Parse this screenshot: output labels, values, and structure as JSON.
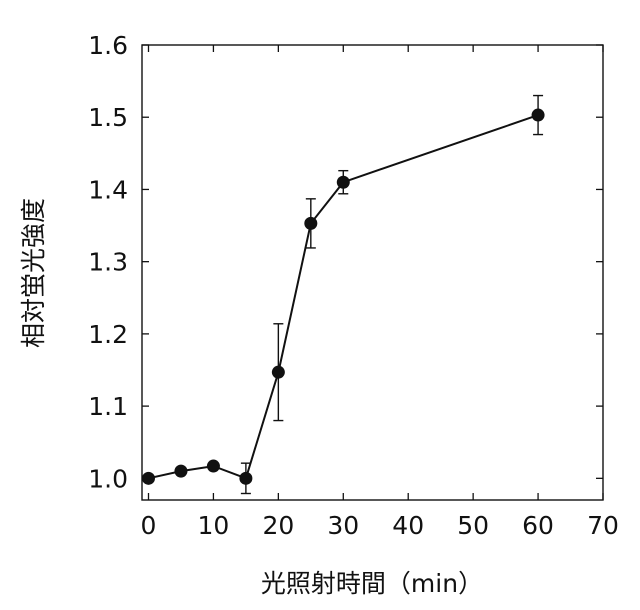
{
  "chart_data": {
    "type": "scatter",
    "title": "",
    "xlabel": "光照射時間（min）",
    "ylabel": "相対蛍光強度",
    "xlim": [
      -1,
      70
    ],
    "ylim": [
      0.97,
      1.6
    ],
    "x_ticks": [
      0,
      10,
      20,
      30,
      40,
      50,
      60,
      70
    ],
    "y_ticks": [
      1.0,
      1.1,
      1.2,
      1.3,
      1.4,
      1.5,
      1.6
    ],
    "x_tick_labels": [
      "0",
      "10",
      "20",
      "30",
      "40",
      "50",
      "60",
      "70"
    ],
    "y_tick_labels": [
      "1.0",
      "1.1",
      "1.2",
      "1.3",
      "1.4",
      "1.5",
      "1.6"
    ],
    "grid": false,
    "legend": "none",
    "series": [
      {
        "points": [
          {
            "x": 0,
            "y": 1.0,
            "err": 0.0
          },
          {
            "x": 5,
            "y": 1.01,
            "err": 0.0
          },
          {
            "x": 10,
            "y": 1.017,
            "err": 0.0
          },
          {
            "x": 15,
            "y": 1.0,
            "err": 0.021
          },
          {
            "x": 20,
            "y": 1.147,
            "err": 0.067
          },
          {
            "x": 25,
            "y": 1.353,
            "err": 0.034
          },
          {
            "x": 30,
            "y": 1.41,
            "err": 0.016
          },
          {
            "x": 60,
            "y": 1.503,
            "err": 0.027
          }
        ],
        "color": "#111111"
      }
    ]
  }
}
